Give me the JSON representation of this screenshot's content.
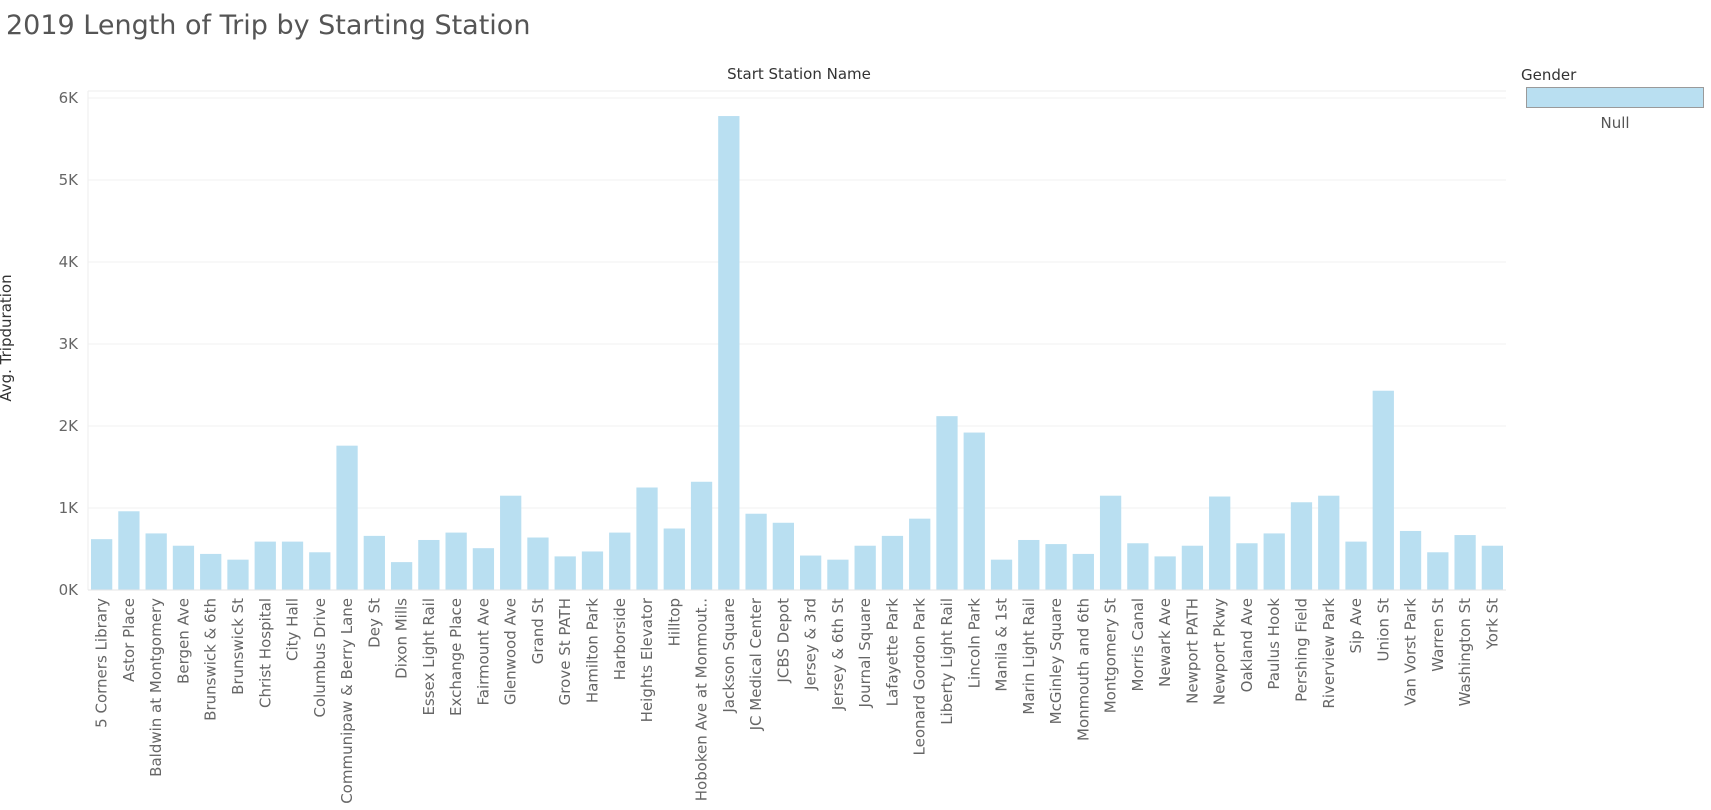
{
  "title": "2019 Length of Trip by Starting Station",
  "legend": {
    "title": "Gender",
    "items": [
      "Null"
    ],
    "color": "#b9dff1"
  },
  "chart_data": {
    "type": "bar",
    "title": "2019 Length of Trip by Starting Station",
    "xlabel": "Start Station Name",
    "ylabel": "Avg. Tripduration",
    "ylim": [
      0,
      6000
    ],
    "yticks": [
      0,
      1000,
      2000,
      3000,
      4000,
      5000,
      6000
    ],
    "ytick_labels": [
      "0K",
      "1K",
      "2K",
      "3K",
      "4K",
      "5K",
      "6K"
    ],
    "grid": true,
    "legend_position": "top-right",
    "bar_color": "#b9dff1",
    "categories": [
      "5 Corners Library",
      "Astor Place",
      "Baldwin at Montgomery",
      "Bergen Ave",
      "Brunswick & 6th",
      "Brunswick St",
      "Christ Hospital",
      "City Hall",
      "Columbus Drive",
      "Communipaw & Berry Lane",
      "Dey St",
      "Dixon Mills",
      "Essex Light Rail",
      "Exchange Place",
      "Fairmount Ave",
      "Glenwood Ave",
      "Grand St",
      "Grove St PATH",
      "Hamilton Park",
      "Harborside",
      "Heights Elevator",
      "Hilltop",
      "Hoboken Ave at Monmout..",
      "Jackson Square",
      "JC Medical Center",
      "JCBS Depot",
      "Jersey & 3rd",
      "Jersey & 6th St",
      "Journal Square",
      "Lafayette Park",
      "Leonard Gordon Park",
      "Liberty Light Rail",
      "Lincoln Park",
      "Manila & 1st",
      "Marin Light Rail",
      "McGinley Square",
      "Monmouth and 6th",
      "Montgomery St",
      "Morris Canal",
      "Newark Ave",
      "Newport PATH",
      "Newport Pkwy",
      "Oakland Ave",
      "Paulus Hook",
      "Pershing Field",
      "Riverview Park",
      "Sip Ave",
      "Union St",
      "Van Vorst Park",
      "Warren St",
      "Washington St",
      "York St"
    ],
    "series": [
      {
        "name": "Null",
        "values": [
          620,
          960,
          690,
          540,
          440,
          370,
          590,
          590,
          460,
          1760,
          660,
          340,
          610,
          700,
          510,
          1150,
          640,
          410,
          470,
          700,
          1250,
          750,
          1320,
          5780,
          930,
          820,
          420,
          370,
          540,
          660,
          870,
          2120,
          1920,
          370,
          610,
          560,
          440,
          1150,
          570,
          410,
          540,
          1140,
          570,
          690,
          1070,
          1150,
          590,
          2430,
          720,
          460,
          670,
          540
        ]
      }
    ]
  }
}
